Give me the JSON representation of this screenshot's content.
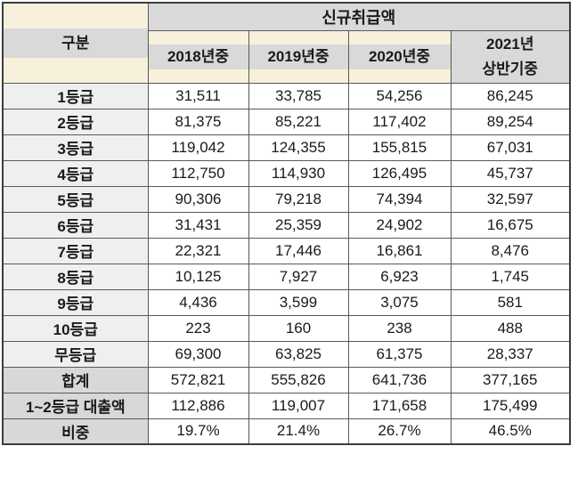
{
  "colors": {
    "header_gray": "#d9d9d9",
    "cream": "#f7f0da",
    "label_light": "#efefef",
    "label_dark": "#d8d8d8",
    "border": "#595959",
    "text": "#1a1a1a"
  },
  "table": {
    "corner_label": "구분",
    "group_header": "신규취급액",
    "year_headers": [
      "2018년중",
      "2019년중",
      "2020년중"
    ],
    "last_year_header_lines": [
      "2021년",
      "상반기중"
    ],
    "rows": [
      {
        "label": "1등급",
        "values": [
          "31,511",
          "33,785",
          "54,256",
          "86,245"
        ],
        "summary": false
      },
      {
        "label": "2등급",
        "values": [
          "81,375",
          "85,221",
          "117,402",
          "89,254"
        ],
        "summary": false
      },
      {
        "label": "3등급",
        "values": [
          "119,042",
          "124,355",
          "155,815",
          "67,031"
        ],
        "summary": false
      },
      {
        "label": "4등급",
        "values": [
          "112,750",
          "114,930",
          "126,495",
          "45,737"
        ],
        "summary": false
      },
      {
        "label": "5등급",
        "values": [
          "90,306",
          "79,218",
          "74,394",
          "32,597"
        ],
        "summary": false
      },
      {
        "label": "6등급",
        "values": [
          "31,431",
          "25,359",
          "24,902",
          "16,675"
        ],
        "summary": false
      },
      {
        "label": "7등급",
        "values": [
          "22,321",
          "17,446",
          "16,861",
          "8,476"
        ],
        "summary": false
      },
      {
        "label": "8등급",
        "values": [
          "10,125",
          "7,927",
          "6,923",
          "1,745"
        ],
        "summary": false
      },
      {
        "label": "9등급",
        "values": [
          "4,436",
          "3,599",
          "3,075",
          "581"
        ],
        "summary": false
      },
      {
        "label": "10등급",
        "values": [
          "223",
          "160",
          "238",
          "488"
        ],
        "summary": false
      },
      {
        "label": "무등급",
        "values": [
          "69,300",
          "63,825",
          "61,375",
          "28,337"
        ],
        "summary": false
      },
      {
        "label": "합계",
        "values": [
          "572,821",
          "555,826",
          "641,736",
          "377,165"
        ],
        "summary": true
      },
      {
        "label": "1~2등급  대출액",
        "values": [
          "112,886",
          "119,007",
          "171,658",
          "175,499"
        ],
        "summary": true
      },
      {
        "label": "비중",
        "values": [
          "19.7%",
          "21.4%",
          "26.7%",
          "46.5%"
        ],
        "summary": true
      }
    ]
  },
  "chart_data": {
    "type": "table",
    "title": "신규취급액",
    "row_header": "구분",
    "columns": [
      "2018년중",
      "2019년중",
      "2020년중",
      "2021년 상반기중"
    ],
    "row_labels": [
      "1등급",
      "2등급",
      "3등급",
      "4등급",
      "5등급",
      "6등급",
      "7등급",
      "8등급",
      "9등급",
      "10등급",
      "무등급",
      "합계",
      "1~2등급 대출액",
      "비중"
    ],
    "series": [
      {
        "name": "2018년중",
        "values": [
          31511,
          81375,
          119042,
          112750,
          90306,
          31431,
          22321,
          10125,
          4436,
          223,
          69300,
          572821,
          112886,
          "19.7%"
        ]
      },
      {
        "name": "2019년중",
        "values": [
          33785,
          85221,
          124355,
          114930,
          79218,
          25359,
          17446,
          7927,
          3599,
          160,
          63825,
          555826,
          119007,
          "21.4%"
        ]
      },
      {
        "name": "2020년중",
        "values": [
          54256,
          117402,
          155815,
          126495,
          74394,
          24902,
          16861,
          6923,
          3075,
          238,
          61375,
          641736,
          171658,
          "26.7%"
        ]
      },
      {
        "name": "2021년 상반기중",
        "values": [
          86245,
          89254,
          67031,
          45737,
          32597,
          16675,
          8476,
          1745,
          581,
          488,
          28337,
          377165,
          175499,
          "46.5%"
        ]
      }
    ]
  }
}
